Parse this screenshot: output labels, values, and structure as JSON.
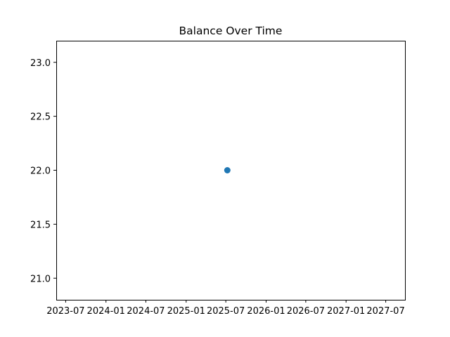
{
  "chart_data": {
    "type": "scatter",
    "title": "Balance Over Time",
    "xlabel": "",
    "ylabel": "",
    "x_type": "date",
    "xlim": [
      "2023-05-19",
      "2027-09-27"
    ],
    "ylim": [
      20.8,
      23.2
    ],
    "x_ticks": [
      "2023-07",
      "2024-01",
      "2024-07",
      "2025-01",
      "2025-07",
      "2026-01",
      "2026-07",
      "2027-01",
      "2027-07"
    ],
    "y_ticks": [
      "21.0",
      "21.5",
      "22.0",
      "22.5",
      "23.0"
    ],
    "grid": false,
    "series": [
      {
        "points": [
          {
            "x": "2025-07-08",
            "y": 22.0
          }
        ],
        "color": "#1f77b4"
      }
    ]
  }
}
